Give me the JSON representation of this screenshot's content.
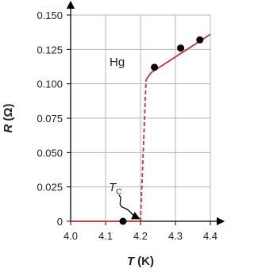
{
  "chart_data": {
    "type": "line",
    "xlabel_symbol": "T",
    "xlabel_unit": "(K)",
    "ylabel_symbol": "R",
    "ylabel_unit": "(Ω)",
    "annotations": [
      {
        "text": "Hg"
      },
      {
        "text": "T",
        "sub": "C"
      }
    ],
    "xlim": [
      4.0,
      4.4
    ],
    "ylim": [
      0,
      0.15
    ],
    "xticks": [
      {
        "value": 4,
        "label": "4.0"
      },
      4.1,
      4.2,
      4.3,
      4.4
    ],
    "yticks": [
      0,
      0.025,
      {
        "value": 0.05,
        "label": "0.050"
      },
      0.075,
      {
        "value": 0.1,
        "label": "0.100"
      },
      0.125,
      {
        "value": 0.15,
        "label": "0.150"
      }
    ],
    "grid": true,
    "color": "#c8353a",
    "point_color": "#000000",
    "lines": [
      {
        "style": "solid",
        "x": [
          4.0,
          4.2
        ],
        "values": [
          0,
          0
        ]
      },
      {
        "style": "dashed",
        "x": [
          4.2,
          4.216
        ],
        "values": [
          0,
          0.103
        ]
      },
      {
        "style": "solid",
        "x": [
          4.216,
          4.23,
          4.4
        ],
        "values": [
          0.103,
          0.108,
          0.136
        ]
      }
    ],
    "points": {
      "x": [
        4.15,
        4.24,
        4.315,
        4.37
      ],
      "values": [
        0,
        0.112,
        0.126,
        0.132
      ]
    }
  }
}
